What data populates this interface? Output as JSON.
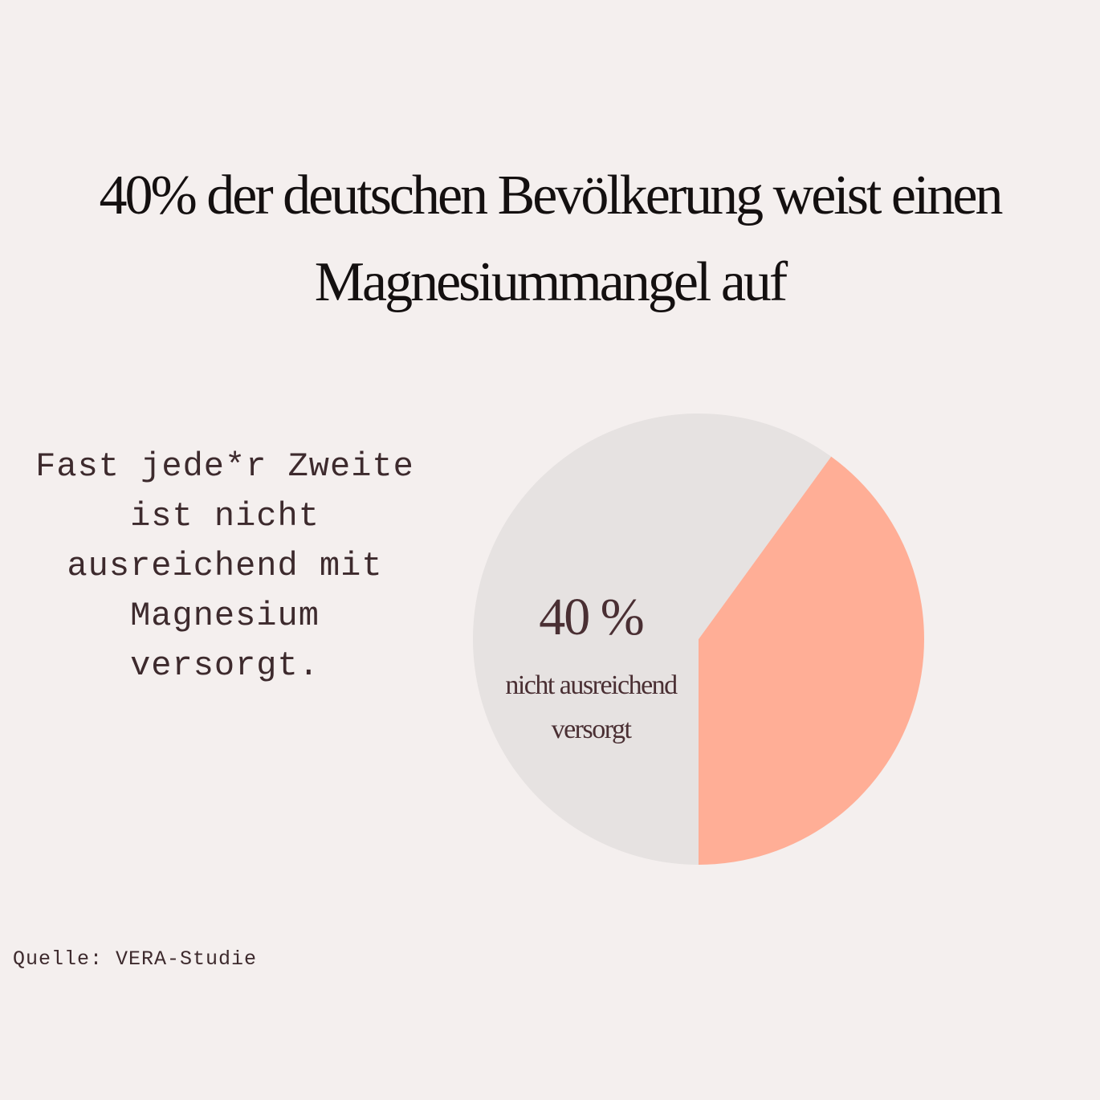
{
  "title": "40% der deutschen Bevölkerung weist einen Magnesiummangel auf",
  "side_text": "Fast jede*r Zweite ist nicht ausreichend mit Magnesium versorgt.",
  "source": "Quelle: VERA-Studie",
  "colors": {
    "background": "#f4efee",
    "highlight": "#ffae96",
    "remainder": "#e6e2e1",
    "text_dark": "#141010",
    "text_brown": "#4a2f33"
  },
  "chart_data": {
    "type": "pie",
    "slices": [
      {
        "label": "nicht ausreichend versorgt",
        "value": 40,
        "display": "40 %",
        "color": "#ffae96"
      },
      {
        "label": "",
        "value": 60,
        "color": "#e6e2e1"
      }
    ]
  }
}
